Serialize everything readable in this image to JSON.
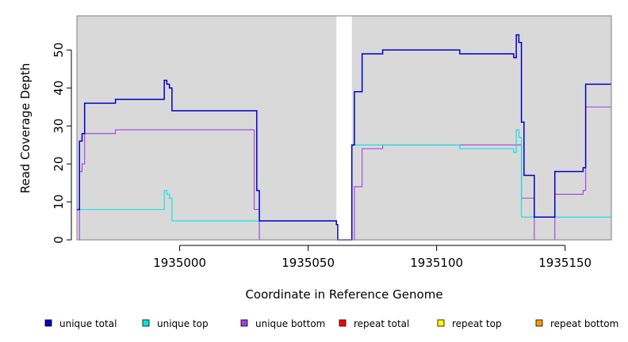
{
  "chart_data": {
    "type": "line",
    "title": "",
    "xlabel": "Coordinate in Reference Genome",
    "ylabel": "Read Coverage Depth",
    "xlim": [
      1934960,
      1935168
    ],
    "ylim": [
      0,
      59
    ],
    "x_ticks": [
      1935000,
      1935050,
      1935100,
      1935150
    ],
    "x_tick_labels": [
      "1935000",
      "1935050",
      "1935100",
      "1935150"
    ],
    "y_ticks": [
      0,
      10,
      20,
      30,
      40,
      50
    ],
    "y_tick_labels": [
      "0",
      "10",
      "20",
      "30",
      "40",
      "50"
    ],
    "background_bands": [
      {
        "from": 1934960,
        "to": 1935061,
        "color": "#d9d9d9"
      },
      {
        "from": 1935067,
        "to": 1935168,
        "color": "#d9d9d9"
      }
    ],
    "legend_position": "bottom",
    "series": [
      {
        "name": "unique total",
        "color": "#0000cc",
        "steps": [
          [
            1934960,
            8
          ],
          [
            1934961,
            26
          ],
          [
            1934962,
            28
          ],
          [
            1934963,
            36
          ],
          [
            1934975,
            37
          ],
          [
            1934994,
            42
          ],
          [
            1934995,
            41
          ],
          [
            1934996,
            40
          ],
          [
            1934997,
            34
          ],
          [
            1935030,
            13
          ],
          [
            1935031,
            5
          ],
          [
            1935061,
            4
          ],
          [
            1935061.5,
            0
          ],
          [
            1935067,
            25
          ],
          [
            1935068,
            39
          ],
          [
            1935071,
            49
          ],
          [
            1935079,
            50
          ],
          [
            1935109,
            49
          ],
          [
            1935130,
            48
          ],
          [
            1935131,
            54
          ],
          [
            1935132,
            52
          ],
          [
            1935133,
            31
          ],
          [
            1935134,
            17
          ],
          [
            1935138,
            6
          ],
          [
            1935146,
            18
          ],
          [
            1935157,
            19
          ],
          [
            1935158,
            41
          ],
          [
            1935168,
            41
          ]
        ]
      },
      {
        "name": "unique top",
        "color": "#00e5e5",
        "steps": [
          [
            1934960,
            8
          ],
          [
            1934994,
            13
          ],
          [
            1934995,
            12
          ],
          [
            1934996,
            11
          ],
          [
            1934997,
            5
          ],
          [
            1935031,
            5
          ],
          [
            1935061,
            4
          ],
          [
            1935061.5,
            0
          ],
          [
            1935067,
            25
          ],
          [
            1935109,
            24
          ],
          [
            1935130,
            23
          ],
          [
            1935131,
            29
          ],
          [
            1935132,
            27
          ],
          [
            1935133,
            6
          ],
          [
            1935168,
            6
          ]
        ]
      },
      {
        "name": "unique bottom",
        "color": "#a040e0",
        "steps": [
          [
            1934960,
            0
          ],
          [
            1934961,
            18
          ],
          [
            1934962,
            20
          ],
          [
            1934963,
            28
          ],
          [
            1934975,
            29
          ],
          [
            1935029,
            8
          ],
          [
            1935031,
            0
          ],
          [
            1935068,
            14
          ],
          [
            1935071,
            24
          ],
          [
            1935079,
            25
          ],
          [
            1935133,
            11
          ],
          [
            1935138,
            0
          ],
          [
            1935146,
            12
          ],
          [
            1935157,
            13
          ],
          [
            1935158,
            35
          ],
          [
            1935168,
            35
          ]
        ]
      },
      {
        "name": "repeat total",
        "color": "#ff0000",
        "steps": [
          [
            1934960,
            0
          ],
          [
            1935168,
            0
          ]
        ]
      },
      {
        "name": "repeat top",
        "color": "#ffff00",
        "steps": [
          [
            1934960,
            0
          ],
          [
            1935168,
            0
          ]
        ]
      },
      {
        "name": "repeat bottom",
        "color": "#ff9900",
        "steps": [
          [
            1934960,
            0
          ],
          [
            1935168,
            0
          ]
        ]
      }
    ]
  }
}
